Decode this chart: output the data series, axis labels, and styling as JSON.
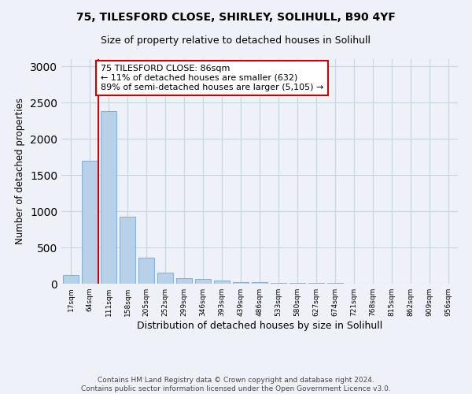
{
  "title1": "75, TILESFORD CLOSE, SHIRLEY, SOLIHULL, B90 4YF",
  "title2": "Size of property relative to detached houses in Solihull",
  "xlabel": "Distribution of detached houses by size in Solihull",
  "ylabel": "Number of detached properties",
  "categories": [
    "17sqm",
    "64sqm",
    "111sqm",
    "158sqm",
    "205sqm",
    "252sqm",
    "299sqm",
    "346sqm",
    "393sqm",
    "439sqm",
    "486sqm",
    "533sqm",
    "580sqm",
    "627sqm",
    "674sqm",
    "721sqm",
    "768sqm",
    "815sqm",
    "862sqm",
    "909sqm",
    "956sqm"
  ],
  "values": [
    115,
    1700,
    2380,
    920,
    360,
    155,
    80,
    60,
    45,
    25,
    20,
    15,
    12,
    10,
    8,
    5,
    3,
    2,
    1,
    1,
    0
  ],
  "bar_color": "#b8d0e8",
  "bar_edgecolor": "#6699cc",
  "annotation_text": "75 TILESFORD CLOSE: 86sqm\n← 11% of detached houses are smaller (632)\n89% of semi-detached houses are larger (5,105) →",
  "annotation_box_color": "#ffffff",
  "annotation_box_edgecolor": "#cc0000",
  "vline_color": "#cc0000",
  "ylim": [
    0,
    3100
  ],
  "yticks": [
    0,
    500,
    1000,
    1500,
    2000,
    2500,
    3000
  ],
  "footer1": "Contains HM Land Registry data © Crown copyright and database right 2024.",
  "footer2": "Contains public sector information licensed under the Open Government Licence v3.0.",
  "bg_color": "#eef2f8",
  "plot_bg_color": "#eef2f8",
  "grid_color": "#c8d4e4"
}
